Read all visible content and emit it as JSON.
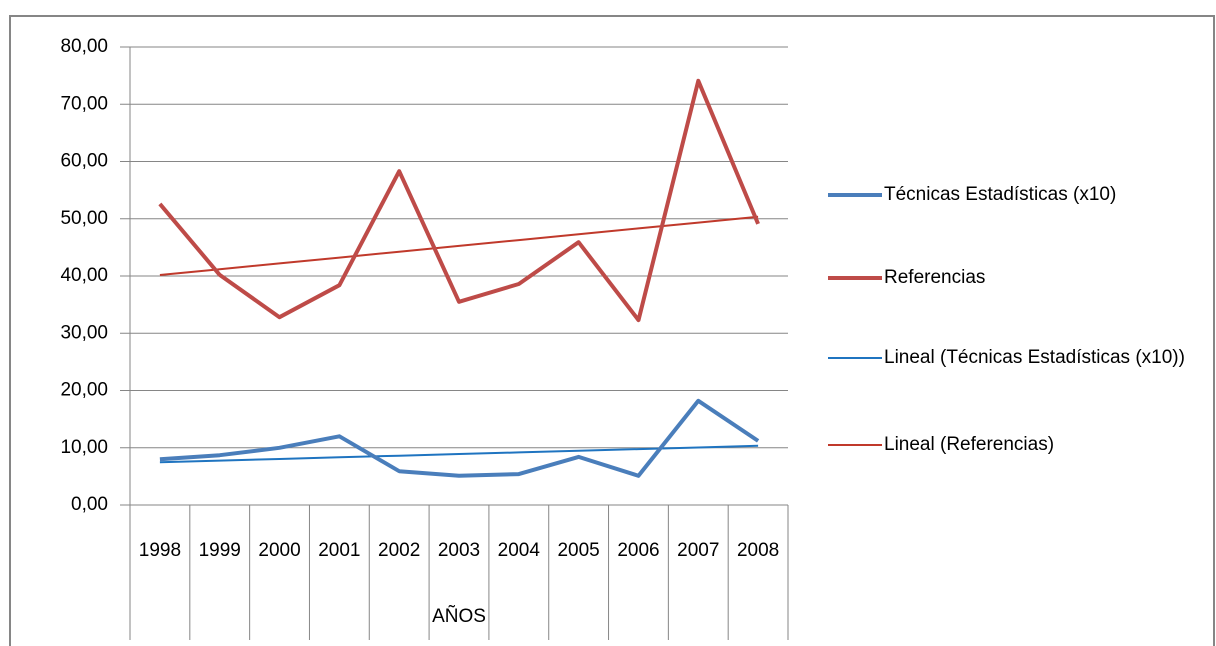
{
  "chart_data": {
    "type": "line",
    "x_label": "AÑOS",
    "categories": [
      "1998",
      "1999",
      "2000",
      "2001",
      "2002",
      "2003",
      "2004",
      "2005",
      "2006",
      "2007",
      "2008"
    ],
    "series": [
      {
        "name": "Técnicas Estadísticas (x10)",
        "color": "#4a7ebb",
        "width": 4,
        "values": [
          8.0,
          8.7,
          10.0,
          12.0,
          5.9,
          5.1,
          5.4,
          8.4,
          5.1,
          18.2,
          11.2
        ]
      },
      {
        "name": "Referencias",
        "color": "#be4b48",
        "width": 4,
        "values": [
          52.6,
          40.2,
          32.8,
          38.4,
          58.3,
          35.5,
          38.6,
          45.9,
          32.3,
          74.1,
          49.1
        ]
      },
      {
        "name": "Lineal (Técnicas Estadísticas (x10))",
        "color": "#1f74c0",
        "width": 2,
        "values": [
          7.47,
          7.76,
          8.04,
          8.33,
          8.62,
          8.91,
          9.19,
          9.48,
          9.77,
          10.05,
          10.34
        ]
      },
      {
        "name": "Lineal (Referencias)",
        "color": "#c0392b",
        "width": 2,
        "values": [
          40.17,
          41.19,
          42.2,
          43.22,
          44.24,
          45.25,
          46.27,
          47.29,
          48.31,
          49.32,
          50.34
        ]
      }
    ],
    "ylim": [
      0,
      80
    ],
    "yticks": [
      {
        "value": 0,
        "label": "0,00"
      },
      {
        "value": 10,
        "label": "10,00"
      },
      {
        "value": 20,
        "label": "20,00"
      },
      {
        "value": 30,
        "label": "30,00"
      },
      {
        "value": 40,
        "label": "40,00"
      },
      {
        "value": 50,
        "label": "50,00"
      },
      {
        "value": 60,
        "label": "60,00"
      },
      {
        "value": 70,
        "label": "70,00"
      },
      {
        "value": 80,
        "label": "80,00"
      }
    ],
    "grid": true,
    "legend": "right"
  }
}
